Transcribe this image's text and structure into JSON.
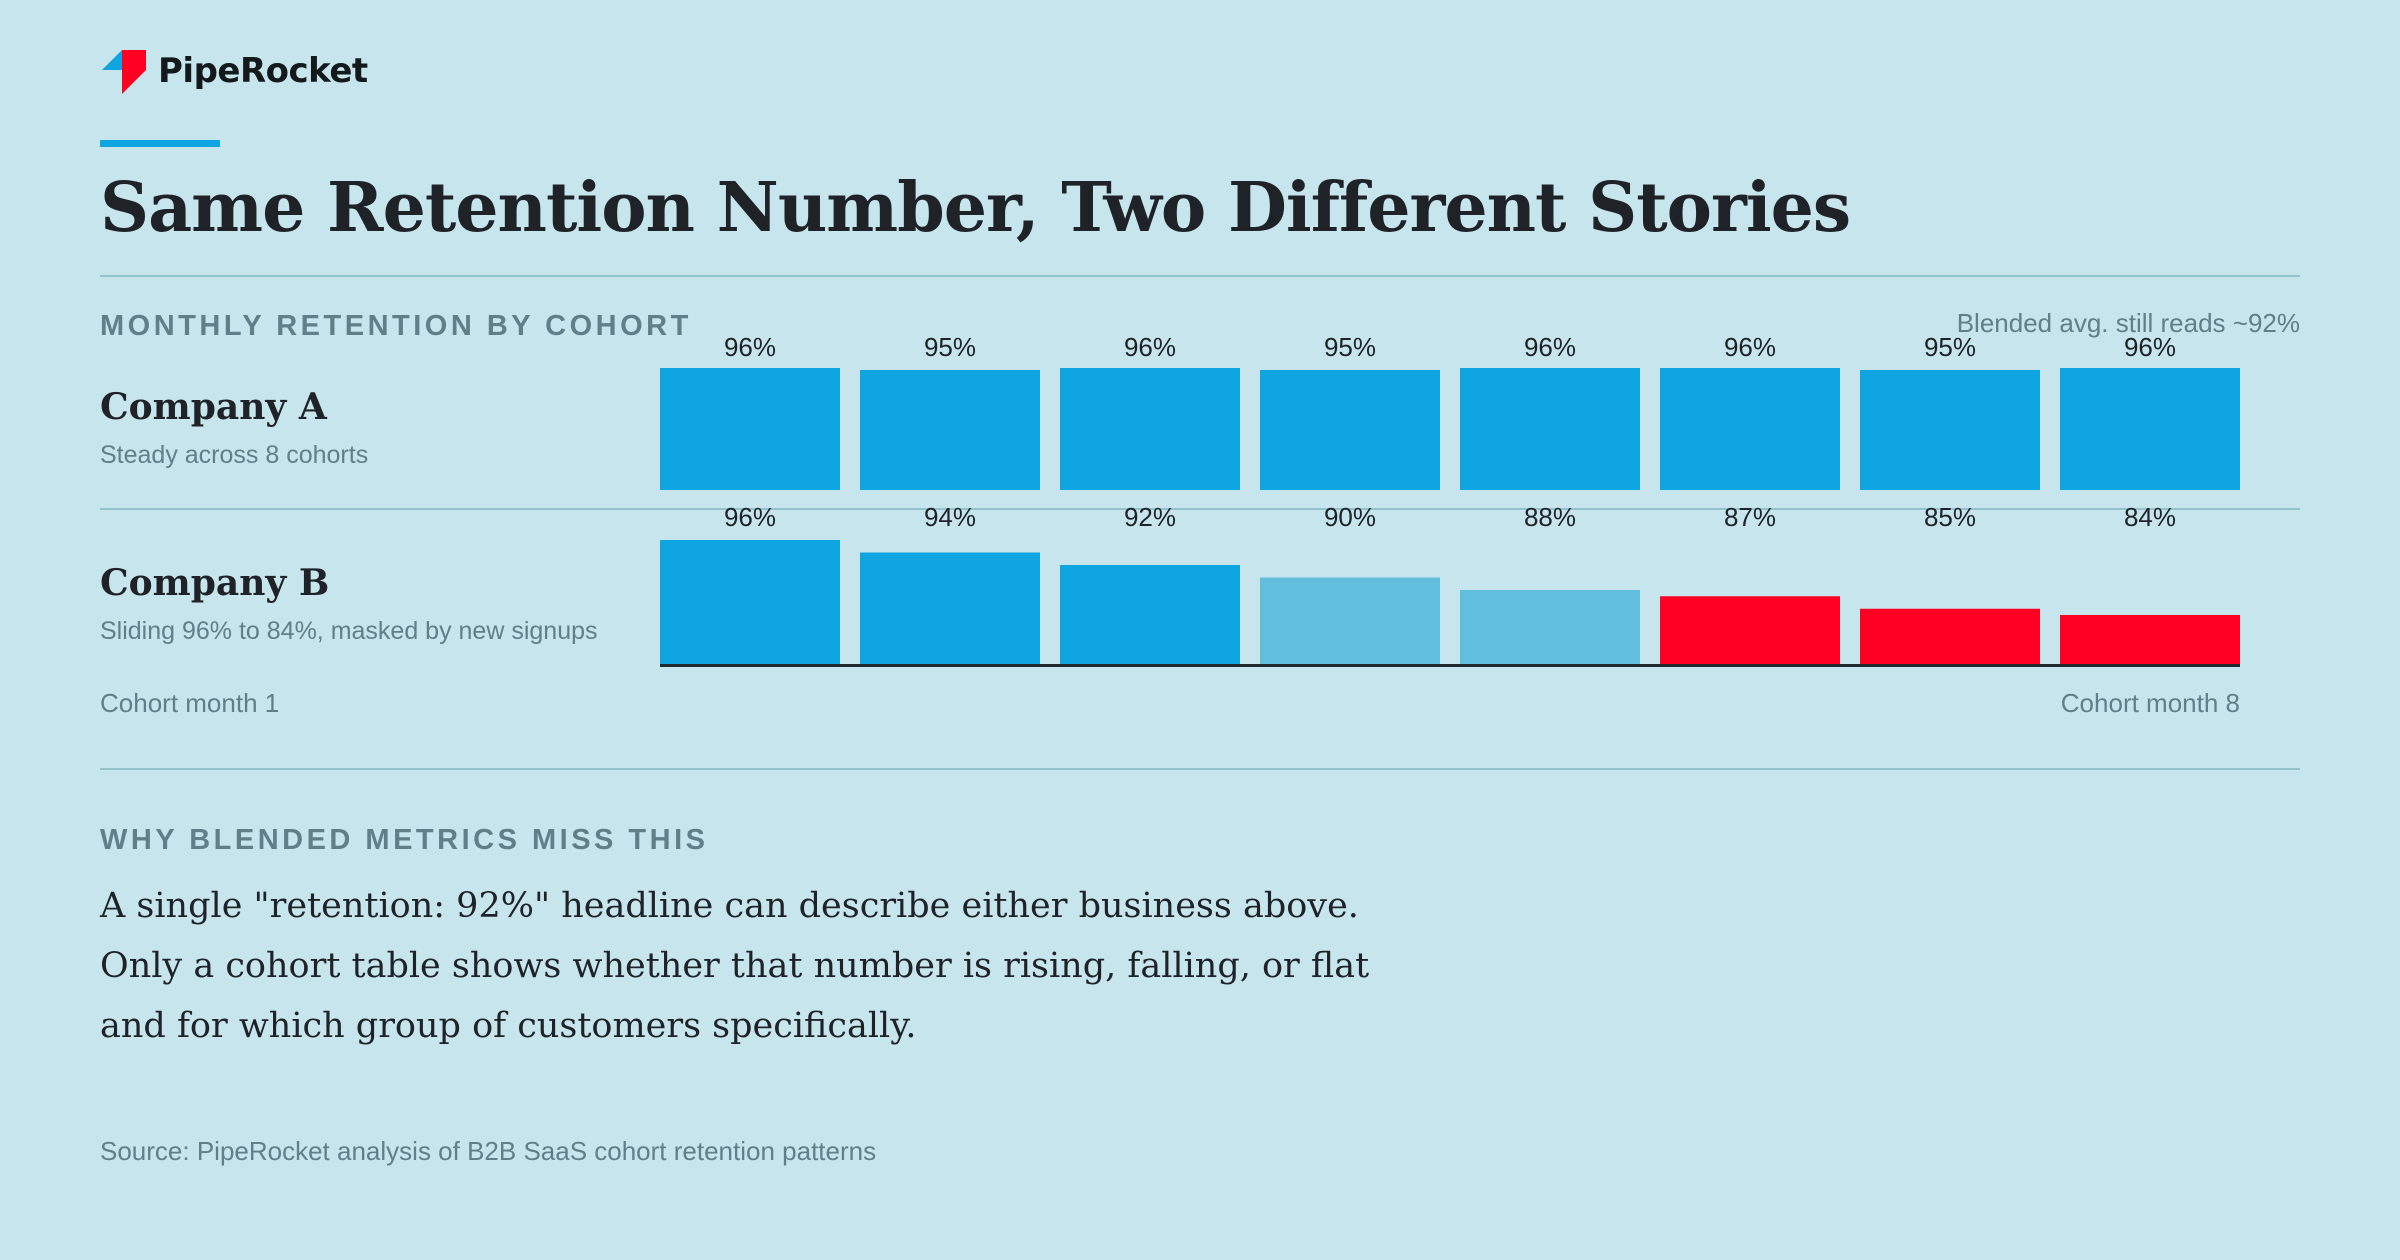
{
  "brand": {
    "name": "PipeRocket",
    "logo_icon": "piperocket-logo-icon",
    "colors": {
      "blue": "#0ea5e0",
      "red": "#ff0022"
    }
  },
  "title": "Same Retention Number, Two Different Stories",
  "chart_section": {
    "label": "MONTHLY RETENTION BY COHORT",
    "annotation": "Blended avg. still reads ~92%"
  },
  "chart_data": {
    "type": "bar",
    "title": "MONTHLY RETENTION BY COHORT",
    "categories": [
      "1",
      "2",
      "3",
      "4",
      "5",
      "6",
      "7",
      "8"
    ],
    "x_start_label": "Cohort month 1",
    "x_end_label": "Cohort month 8",
    "unit": "%",
    "colors": {
      "strong": "#0ea5e0",
      "fading": "#62bedd",
      "warning": "#ff0022",
      "baseline": "#1f2a30"
    },
    "series": [
      {
        "name": "Company A",
        "subtitle": "Steady across 8 cohorts",
        "values": [
          96,
          95,
          96,
          95,
          96,
          96,
          95,
          96
        ],
        "labels": [
          "96%",
          "95%",
          "96%",
          "95%",
          "96%",
          "96%",
          "95%",
          "96%"
        ],
        "bar_colors": [
          "strong",
          "strong",
          "strong",
          "strong",
          "strong",
          "strong",
          "strong",
          "strong"
        ]
      },
      {
        "name": "Company B",
        "subtitle": "Sliding 96% to 84%, masked by new signups",
        "values": [
          96,
          94,
          92,
          90,
          88,
          87,
          85,
          84
        ],
        "labels": [
          "96%",
          "94%",
          "92%",
          "90%",
          "88%",
          "87%",
          "85%",
          "84%"
        ],
        "bar_colors": [
          "strong",
          "strong",
          "strong",
          "fading",
          "fading",
          "warning",
          "warning",
          "warning"
        ]
      }
    ]
  },
  "explainer": {
    "label": "WHY BLENDED METRICS MISS THIS",
    "body": "A single \"retention: 92%\" headline can describe either business above. Only a cohort table shows whether that number is rising, falling, or flat and for which group of customers specifically."
  },
  "source": "Source: PipeRocket analysis of B2B SaaS cohort retention patterns"
}
